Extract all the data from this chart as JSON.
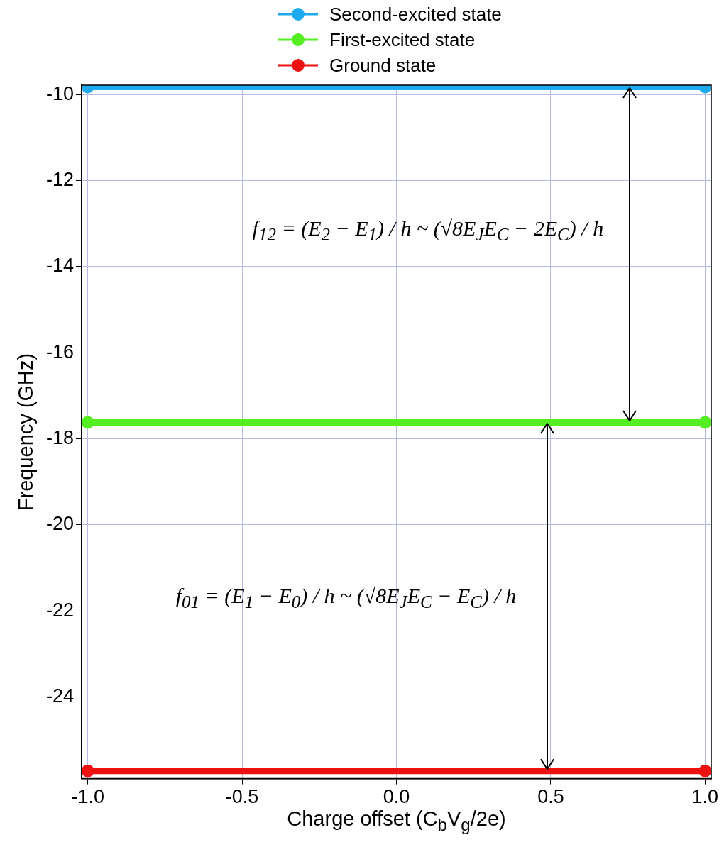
{
  "chart_data": {
    "type": "line",
    "xlabel": "Charge offset (C$_{b}$V$_{g}$/2e)",
    "ylabel": "Frequency (GHz)",
    "x": [
      -1,
      1
    ],
    "series": [
      {
        "name": "Second-excited state",
        "color": "#1eaaf0",
        "values": [
          -9.82,
          -9.82
        ]
      },
      {
        "name": "First-excited state",
        "color": "#55ee22",
        "values": [
          -17.62,
          -17.62
        ]
      },
      {
        "name": "Ground state",
        "color": "#ee1111",
        "values": [
          -25.72,
          -25.72
        ]
      }
    ],
    "xlim": [
      -1.02,
      1.02
    ],
    "ylim": [
      -25.9,
      -9.78
    ],
    "xticks": [
      {
        "value": -1,
        "label": "-1.0"
      },
      {
        "value": -0.5,
        "label": "-0.5"
      },
      {
        "value": 0,
        "label": "0.0"
      },
      {
        "value": 0.5,
        "label": "0.5"
      },
      {
        "value": 1,
        "label": "1.0"
      }
    ],
    "yticks": [
      -10,
      -12,
      -14,
      -16,
      -18,
      -20,
      -22,
      -24
    ],
    "grid": true,
    "legend": "top",
    "marker": "circle",
    "line_style": "solid",
    "annotations": [
      "f$_{12}$ = (E$_{2}$ − E$_{1}$) / h ~ (√8E$_{J}$E$_{C}$ − 2E$_{C}$) / h",
      "f$_{01}$ = (E$_{1}$ − E$_{0}$) / h ~ (√8E$_{J}$E$_{C}$ − E$_{C}$) / h"
    ]
  }
}
